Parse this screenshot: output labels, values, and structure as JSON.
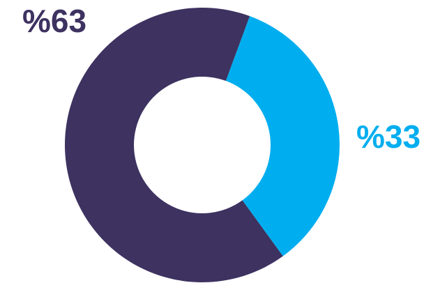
{
  "chart_data": {
    "type": "donut",
    "values": [
      63,
      33
    ],
    "value_labels": [
      "%63",
      "%33"
    ],
    "colors": [
      "#3d3260",
      "#00aeef"
    ]
  }
}
